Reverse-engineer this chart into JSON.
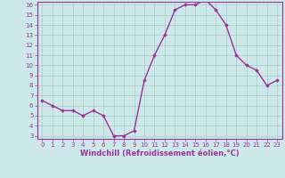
{
  "hours": [
    0,
    1,
    2,
    3,
    4,
    5,
    6,
    7,
    8,
    9,
    10,
    11,
    12,
    13,
    14,
    15,
    16,
    17,
    18,
    19,
    20,
    21,
    22,
    23
  ],
  "values": [
    6.5,
    6.0,
    5.5,
    5.5,
    5.0,
    5.5,
    5.0,
    3.0,
    3.0,
    3.5,
    8.5,
    11.0,
    13.0,
    15.5,
    16.0,
    16.0,
    16.5,
    15.5,
    14.0,
    11.0,
    10.0,
    9.5,
    8.0,
    8.5
  ],
  "line_color": "#993399",
  "marker": "D",
  "marker_size": 1.8,
  "bg_color": "#cce8e8",
  "grid_color": "#aacccc",
  "axis_color": "#993399",
  "xlabel": "Windchill (Refroidissement éolien,°C)",
  "ylim_min": 3,
  "ylim_max": 16,
  "yticks": [
    3,
    4,
    5,
    6,
    7,
    8,
    9,
    10,
    11,
    12,
    13,
    14,
    15,
    16
  ],
  "xticks": [
    0,
    1,
    2,
    3,
    4,
    5,
    6,
    7,
    8,
    9,
    10,
    11,
    12,
    13,
    14,
    15,
    16,
    17,
    18,
    19,
    20,
    21,
    22,
    23
  ],
  "tick_fontsize": 5.0,
  "xlabel_fontsize": 6.0,
  "lw": 1.0
}
